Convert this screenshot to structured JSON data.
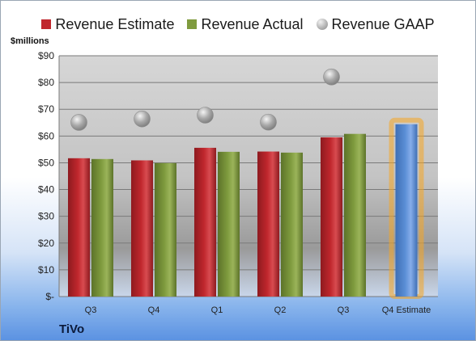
{
  "legend": {
    "estimate": "Revenue Estimate",
    "actual": "Revenue Actual",
    "gaap": "Revenue GAAP"
  },
  "unit_label": "$millions",
  "company_label": "TiVo",
  "colors": {
    "estimate": "#c0272d",
    "actual": "#7f9b3e",
    "forecast": "#5b8fd6",
    "highlight": "#f5a623",
    "gaap": "#a9a9a9"
  },
  "chart_data": {
    "type": "bar",
    "categories": [
      "Q3",
      "Q4",
      "Q1",
      "Q2",
      "Q3",
      "Q4 Estimate"
    ],
    "series": [
      {
        "name": "Revenue Estimate",
        "values": [
          51.7,
          50.9,
          55.6,
          54.2,
          59.5,
          64.4
        ]
      },
      {
        "name": "Revenue Actual",
        "values": [
          51.4,
          49.9,
          54.1,
          53.8,
          60.8,
          null
        ]
      },
      {
        "name": "Revenue GAAP",
        "type": "scatter",
        "values": [
          65.1,
          66.4,
          67.8,
          65.2,
          82.1,
          null
        ]
      }
    ],
    "highlighted_category": "Q4 Estimate",
    "yticks": [
      "$-",
      "$10",
      "$20",
      "$30",
      "$40",
      "$50",
      "$60",
      "$70",
      "$80",
      "$90"
    ],
    "ylim": [
      0,
      90
    ],
    "grid": true,
    "legend_position": "top"
  }
}
